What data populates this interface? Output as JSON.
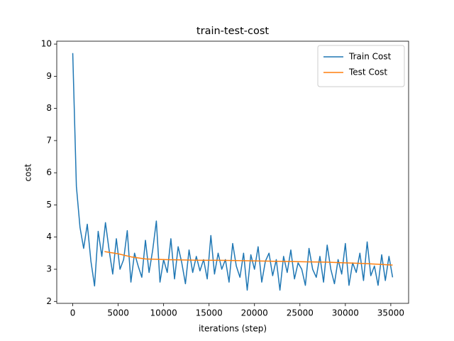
{
  "chart_data": {
    "type": "line",
    "title": "train-test-cost",
    "xlabel": "iterations (step)",
    "ylabel": "cost",
    "xlim": [
      -1760,
      36960
    ],
    "ylim": [
      1.94,
      10.09
    ],
    "xticks": [
      0,
      5000,
      10000,
      15000,
      20000,
      25000,
      30000,
      35000
    ],
    "yticks": [
      2,
      3,
      4,
      5,
      6,
      7,
      8,
      9,
      10
    ],
    "grid": false,
    "legend": "upper right",
    "series": [
      {
        "name": "Train Cost",
        "color": "#1f77b4",
        "x": [
          0,
          400,
          800,
          1200,
          1600,
          2000,
          2400,
          2800,
          3200,
          3600,
          4000,
          4400,
          4800,
          5200,
          5600,
          6000,
          6400,
          6800,
          7200,
          7600,
          8000,
          8400,
          8800,
          9200,
          9600,
          10000,
          10400,
          10800,
          11200,
          11600,
          12000,
          12400,
          12800,
          13200,
          13600,
          14000,
          14400,
          14800,
          15200,
          15600,
          16000,
          16400,
          16800,
          17200,
          17600,
          18000,
          18400,
          18800,
          19200,
          19600,
          20000,
          20400,
          20800,
          21200,
          21600,
          22000,
          22400,
          22800,
          23200,
          23600,
          24000,
          24400,
          24800,
          25200,
          25600,
          26000,
          26400,
          26800,
          27200,
          27600,
          28000,
          28400,
          28800,
          29200,
          29600,
          30000,
          30400,
          30800,
          31200,
          31600,
          32000,
          32400,
          32800,
          33200,
          33600,
          34000,
          34400,
          34800,
          35200
        ],
        "values": [
          9.72,
          5.58,
          4.3,
          3.65,
          4.4,
          3.25,
          2.48,
          4.18,
          3.4,
          4.45,
          3.6,
          2.85,
          3.95,
          3.0,
          3.3,
          4.2,
          2.6,
          3.5,
          3.1,
          2.75,
          3.9,
          2.9,
          3.6,
          4.5,
          2.6,
          3.3,
          2.9,
          3.95,
          2.7,
          3.7,
          3.2,
          2.55,
          3.6,
          2.9,
          3.4,
          2.95,
          3.3,
          2.7,
          4.05,
          2.85,
          3.5,
          3.0,
          3.3,
          2.6,
          3.8,
          3.1,
          2.75,
          3.5,
          2.35,
          3.45,
          3.0,
          3.7,
          2.6,
          3.25,
          3.5,
          2.8,
          3.3,
          2.35,
          3.4,
          2.9,
          3.6,
          2.7,
          3.2,
          3.0,
          2.5,
          3.65,
          3.0,
          2.75,
          3.4,
          2.6,
          3.75,
          3.0,
          2.55,
          3.3,
          2.85,
          3.8,
          2.5,
          3.2,
          2.9,
          3.5,
          2.65,
          3.85,
          2.8,
          3.1,
          2.5,
          3.45,
          2.65,
          3.4,
          2.75
        ]
      },
      {
        "name": "Test Cost",
        "color": "#ff7f0e",
        "x": [
          3500,
          5000,
          6500,
          8000,
          10000,
          12000,
          14000,
          16000,
          18000,
          20000,
          22000,
          24000,
          26000,
          28000,
          30000,
          32000,
          34000,
          35200
        ],
        "values": [
          3.55,
          3.48,
          3.38,
          3.32,
          3.3,
          3.29,
          3.28,
          3.28,
          3.27,
          3.26,
          3.25,
          3.24,
          3.23,
          3.22,
          3.2,
          3.18,
          3.15,
          3.13
        ]
      }
    ]
  }
}
